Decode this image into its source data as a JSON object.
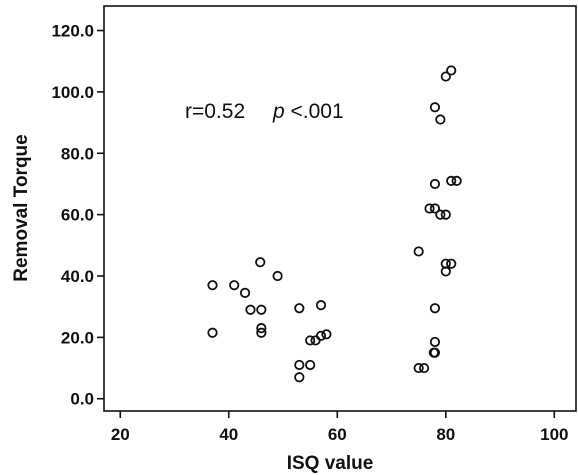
{
  "chart_data": {
    "type": "scatter",
    "title": "",
    "xlabel": "ISQ value",
    "ylabel": "Removal Torque",
    "xlim": [
      17,
      104
    ],
    "ylim": [
      -4,
      128
    ],
    "x_ticks": [
      20,
      40,
      60,
      80,
      100
    ],
    "x_tick_labels": [
      "20",
      "40",
      "60",
      "80",
      "100"
    ],
    "y_ticks": [
      0,
      20,
      40,
      60,
      80,
      100,
      120
    ],
    "y_tick_labels": [
      "0.0",
      "20.0",
      "40.0",
      "60.0",
      "80.0",
      "100.0",
      "120.0"
    ],
    "grid": false,
    "annotations": {
      "r_text": "r=0.52",
      "p_label": "p",
      "p_value": "<.001"
    },
    "series": [
      {
        "x": [
          37,
          37,
          41,
          43,
          44,
          45.8,
          46,
          46,
          46,
          49,
          53,
          53,
          53,
          55,
          55,
          56,
          57,
          57,
          58,
          75,
          75,
          76,
          77,
          77.8,
          78,
          78,
          78,
          78,
          78,
          78,
          79,
          79,
          80,
          80,
          80,
          80,
          81,
          81,
          81,
          82
        ],
        "y": [
          37,
          21.5,
          37,
          34.5,
          29,
          44.5,
          29,
          23,
          21.5,
          40,
          29.5,
          11,
          7,
          11,
          19,
          19,
          20.5,
          30.5,
          21,
          48,
          10,
          10,
          62,
          15,
          95,
          70,
          62,
          29.5,
          18.5,
          15,
          91,
          60,
          60,
          44,
          105,
          41.5,
          107,
          71,
          44,
          71
        ]
      }
    ]
  }
}
